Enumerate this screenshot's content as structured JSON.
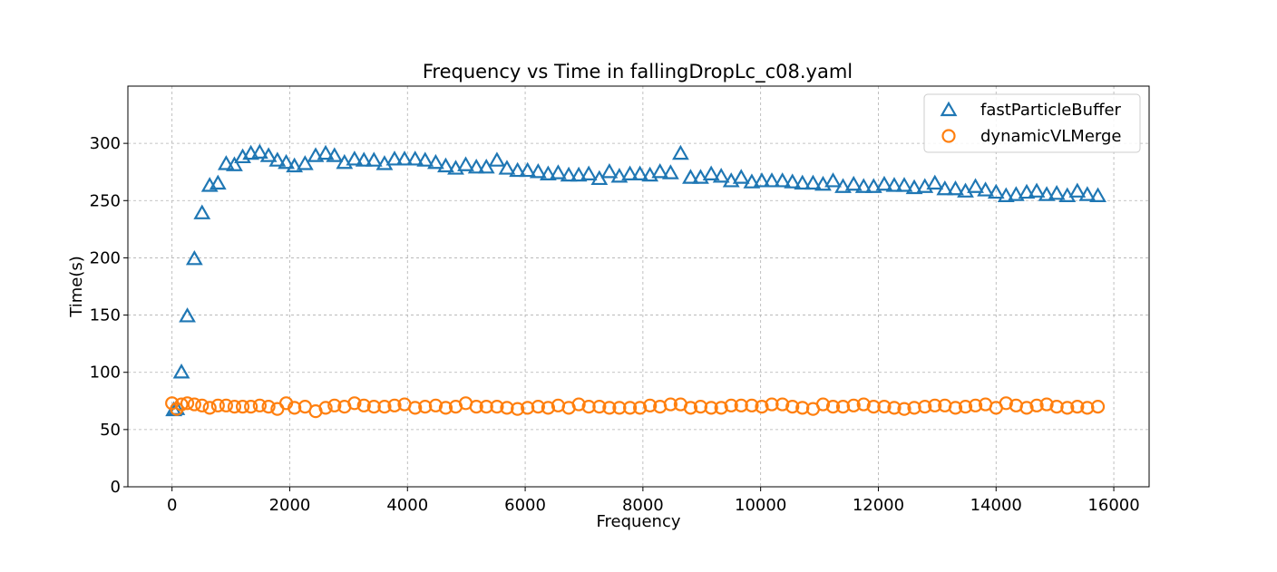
{
  "chart_data": {
    "type": "scatter",
    "title": "Frequency vs Time in fallingDropLc_c08.yaml",
    "xlabel": "Frequency",
    "ylabel": "Time(s)",
    "xlim": [
      -750,
      16600
    ],
    "ylim": [
      0,
      350
    ],
    "xticks": [
      0,
      2000,
      4000,
      6000,
      8000,
      10000,
      12000,
      14000,
      16000
    ],
    "yticks": [
      0,
      50,
      100,
      150,
      200,
      250,
      300
    ],
    "grid": true,
    "legend_position": "top-right",
    "series": [
      {
        "name": "fastParticleBuffer",
        "marker": "triangle",
        "color": "#1f77b4",
        "x": [
          30,
          80,
          160,
          260,
          380,
          510,
          640,
          780,
          920,
          1060,
          1200,
          1340,
          1490,
          1640,
          1790,
          1940,
          2080,
          2260,
          2440,
          2610,
          2760,
          2930,
          3100,
          3260,
          3430,
          3610,
          3780,
          3950,
          4130,
          4300,
          4480,
          4650,
          4820,
          4990,
          5170,
          5340,
          5520,
          5690,
          5870,
          6040,
          6220,
          6390,
          6560,
          6740,
          6910,
          7080,
          7260,
          7430,
          7600,
          7780,
          7950,
          8120,
          8290,
          8470,
          8640,
          8810,
          8980,
          9160,
          9330,
          9500,
          9670,
          9850,
          10020,
          10190,
          10370,
          10540,
          10710,
          10890,
          11060,
          11230,
          11400,
          11580,
          11750,
          11920,
          12100,
          12270,
          12440,
          12610,
          12790,
          12960,
          13130,
          13310,
          13480,
          13650,
          13820,
          14000,
          14170,
          14340,
          14520,
          14690,
          14860,
          15030,
          15210,
          15380,
          15550,
          15730
        ],
        "y": [
          67,
          68,
          100,
          149,
          199,
          239,
          263,
          265,
          282,
          281,
          288,
          291,
          292,
          289,
          285,
          283,
          280,
          282,
          289,
          291,
          289,
          283,
          286,
          285,
          285,
          282,
          286,
          286,
          286,
          285,
          283,
          280,
          278,
          281,
          279,
          279,
          285,
          278,
          276,
          276,
          275,
          273,
          274,
          272,
          272,
          273,
          269,
          275,
          271,
          273,
          273,
          272,
          275,
          274,
          291,
          270,
          270,
          273,
          271,
          267,
          270,
          266,
          267,
          267,
          267,
          266,
          265,
          265,
          264,
          267,
          262,
          264,
          262,
          262,
          264,
          263,
          263,
          261,
          262,
          265,
          260,
          260,
          258,
          262,
          259,
          257,
          254,
          255,
          257,
          258,
          255,
          256,
          254,
          258,
          255,
          254
        ]
      },
      {
        "name": "dynamicVLMerge",
        "marker": "circle",
        "color": "#ff7f0e",
        "x": [
          0,
          80,
          160,
          260,
          380,
          510,
          640,
          780,
          920,
          1060,
          1200,
          1340,
          1490,
          1640,
          1790,
          1940,
          2080,
          2260,
          2440,
          2610,
          2760,
          2930,
          3100,
          3260,
          3430,
          3610,
          3780,
          3950,
          4130,
          4300,
          4480,
          4650,
          4820,
          4990,
          5170,
          5340,
          5520,
          5690,
          5870,
          6040,
          6220,
          6390,
          6560,
          6740,
          6910,
          7080,
          7260,
          7430,
          7600,
          7780,
          7950,
          8120,
          8290,
          8470,
          8640,
          8810,
          8980,
          9160,
          9330,
          9500,
          9670,
          9850,
          10020,
          10190,
          10370,
          10540,
          10710,
          10890,
          11060,
          11230,
          11400,
          11580,
          11750,
          11920,
          12100,
          12270,
          12440,
          12610,
          12790,
          12960,
          13130,
          13310,
          13480,
          13650,
          13820,
          14000,
          14170,
          14340,
          14520,
          14690,
          14860,
          15030,
          15210,
          15380,
          15550,
          15730
        ],
        "y": [
          73,
          68,
          72,
          73,
          72,
          71,
          69,
          71,
          71,
          70,
          70,
          70,
          71,
          70,
          68,
          73,
          69,
          70,
          66,
          69,
          71,
          70,
          73,
          71,
          70,
          70,
          71,
          72,
          69,
          70,
          71,
          69,
          70,
          73,
          70,
          70,
          70,
          69,
          68,
          69,
          70,
          69,
          71,
          69,
          72,
          70,
          70,
          69,
          69,
          69,
          69,
          71,
          70,
          72,
          72,
          69,
          70,
          69,
          69,
          71,
          71,
          71,
          70,
          72,
          72,
          70,
          69,
          68,
          72,
          70,
          70,
          71,
          72,
          70,
          70,
          69,
          68,
          69,
          70,
          71,
          71,
          69,
          70,
          71,
          72,
          69,
          73,
          71,
          69,
          71,
          72,
          70,
          69,
          70,
          69,
          70
        ]
      }
    ]
  }
}
